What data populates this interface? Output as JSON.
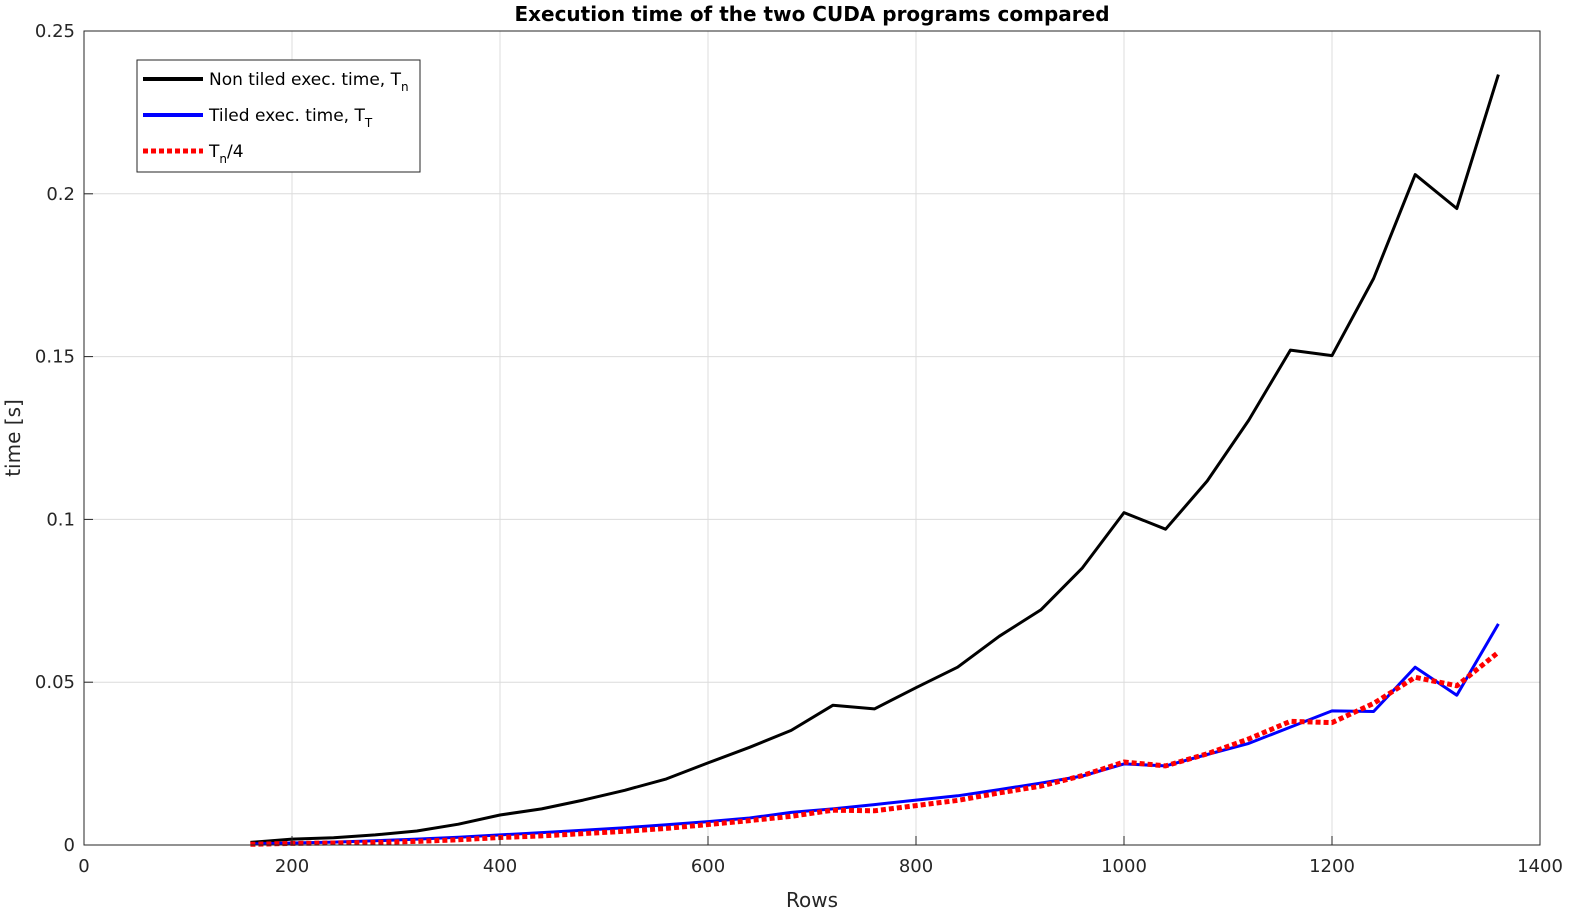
{
  "chart_data": {
    "type": "line",
    "title": "Execution time of the two CUDA programs compared",
    "xlabel": "Rows",
    "ylabel": "time [s]",
    "xlim": [
      0,
      1400
    ],
    "ylim": [
      0,
      0.25
    ],
    "xticks": [
      0,
      200,
      400,
      600,
      800,
      1000,
      1200,
      1400
    ],
    "xtick_labels": [
      "0",
      "200",
      "400",
      "600",
      "800",
      "1000",
      "1200",
      "1400"
    ],
    "yticks": [
      0,
      0.05,
      0.1,
      0.15,
      0.2,
      0.25
    ],
    "ytick_labels": [
      "0",
      "0.05",
      "0.1",
      "0.15",
      "0.2",
      "0.25"
    ],
    "grid": true,
    "legend_position": "top-left",
    "x": [
      160,
      200,
      240,
      280,
      320,
      360,
      400,
      440,
      480,
      520,
      560,
      600,
      640,
      680,
      720,
      760,
      800,
      840,
      880,
      920,
      960,
      1000,
      1040,
      1080,
      1120,
      1160,
      1200,
      1240,
      1280,
      1320,
      1360
    ],
    "series": [
      {
        "legend_main": "Non tiled exec. time, T",
        "legend_sub": "n",
        "legend_suffix": "",
        "color": "#000000",
        "style": "solid",
        "values": [
          0.0008,
          0.0018,
          0.0022,
          0.0031,
          0.0043,
          0.0064,
          0.0092,
          0.0111,
          0.0138,
          0.0168,
          0.0203,
          0.0252,
          0.03,
          0.0352,
          0.0429,
          0.0418,
          0.0483,
          0.0546,
          0.0641,
          0.0722,
          0.0851,
          0.1021,
          0.097,
          0.1118,
          0.1305,
          0.152,
          0.1503,
          0.174,
          0.2059,
          0.1955,
          0.2366
        ]
      },
      {
        "legend_main": "Tiled exec. time, T",
        "legend_sub": "T",
        "legend_suffix": "",
        "color": "#0000ff",
        "style": "solid",
        "values": [
          0.0003,
          0.0006,
          0.0009,
          0.0013,
          0.0018,
          0.0024,
          0.0031,
          0.0038,
          0.0045,
          0.0053,
          0.0062,
          0.0072,
          0.0083,
          0.01,
          0.0111,
          0.0124,
          0.0138,
          0.0151,
          0.017,
          0.019,
          0.0212,
          0.0249,
          0.0243,
          0.0278,
          0.0312,
          0.0362,
          0.0412,
          0.041,
          0.0546,
          0.046,
          0.0679
        ]
      },
      {
        "legend_main": "T",
        "legend_sub": "n",
        "legend_suffix": "/4",
        "color": "#ff0000",
        "style": "dotted",
        "values": [
          0.0002,
          0.0005,
          0.0006,
          0.0008,
          0.0011,
          0.0016,
          0.0023,
          0.0028,
          0.0035,
          0.0042,
          0.0051,
          0.0063,
          0.0075,
          0.0088,
          0.0107,
          0.0105,
          0.0121,
          0.0137,
          0.016,
          0.0181,
          0.0213,
          0.0255,
          0.0243,
          0.028,
          0.0326,
          0.038,
          0.0376,
          0.0435,
          0.0515,
          0.0489,
          0.0592
        ]
      }
    ]
  }
}
